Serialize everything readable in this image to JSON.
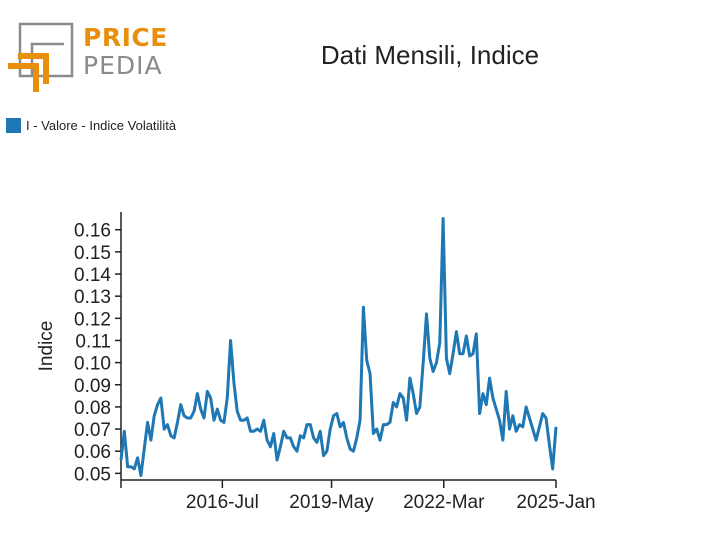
{
  "logo": {
    "word1": "PRICE",
    "word2": "PEDIA",
    "accent_color": "#e8900e",
    "gray_color": "#8a8a8a"
  },
  "chart_data": {
    "type": "line",
    "title": "Dati Mensili, Indice",
    "ylabel": "Indice",
    "xlabel": "",
    "legend": "top-left",
    "grid": false,
    "ylim": [
      0.047,
      0.168
    ],
    "y_ticks": [
      0.05,
      0.06,
      0.07,
      0.08,
      0.09,
      0.1,
      0.11,
      0.12,
      0.13,
      0.14,
      0.15,
      0.16
    ],
    "y_tick_labels": [
      "0.05",
      "0.06",
      "0.07",
      "0.08",
      "0.09",
      "0.10",
      "0.11",
      "0.12",
      "0.13",
      "0.14",
      "0.15",
      "0.16"
    ],
    "x_tick_labels": [
      "2016-Jul",
      "2019-May",
      "2022-Mar",
      "2025-Jan"
    ],
    "x_tick_positions": [
      0.233,
      0.484,
      0.742,
      1.0
    ],
    "series": [
      {
        "name": "I - Valore - Indice Volatilità",
        "color": "#1f77b4",
        "values": [
          0.056,
          0.069,
          0.053,
          0.053,
          0.052,
          0.057,
          0.049,
          0.061,
          0.073,
          0.065,
          0.076,
          0.081,
          0.084,
          0.07,
          0.072,
          0.067,
          0.066,
          0.073,
          0.081,
          0.076,
          0.075,
          0.075,
          0.078,
          0.086,
          0.079,
          0.075,
          0.087,
          0.084,
          0.074,
          0.079,
          0.074,
          0.073,
          0.084,
          0.11,
          0.091,
          0.078,
          0.074,
          0.074,
          0.075,
          0.069,
          0.069,
          0.07,
          0.069,
          0.074,
          0.065,
          0.062,
          0.068,
          0.056,
          0.062,
          0.069,
          0.066,
          0.066,
          0.062,
          0.06,
          0.067,
          0.066,
          0.072,
          0.072,
          0.066,
          0.064,
          0.069,
          0.058,
          0.06,
          0.07,
          0.076,
          0.077,
          0.071,
          0.073,
          0.066,
          0.061,
          0.06,
          0.066,
          0.074,
          0.125,
          0.101,
          0.095,
          0.068,
          0.07,
          0.065,
          0.072,
          0.072,
          0.073,
          0.082,
          0.08,
          0.086,
          0.084,
          0.074,
          0.093,
          0.086,
          0.077,
          0.08,
          0.1,
          0.122,
          0.102,
          0.096,
          0.1,
          0.109,
          0.165,
          0.102,
          0.095,
          0.104,
          0.114,
          0.104,
          0.104,
          0.112,
          0.103,
          0.104,
          0.113,
          0.077,
          0.086,
          0.081,
          0.093,
          0.084,
          0.079,
          0.074,
          0.065,
          0.087,
          0.07,
          0.076,
          0.069,
          0.072,
          0.071,
          0.08,
          0.075,
          0.07,
          0.065,
          0.071,
          0.077,
          0.075,
          0.063,
          0.052,
          0.071
        ]
      }
    ]
  }
}
